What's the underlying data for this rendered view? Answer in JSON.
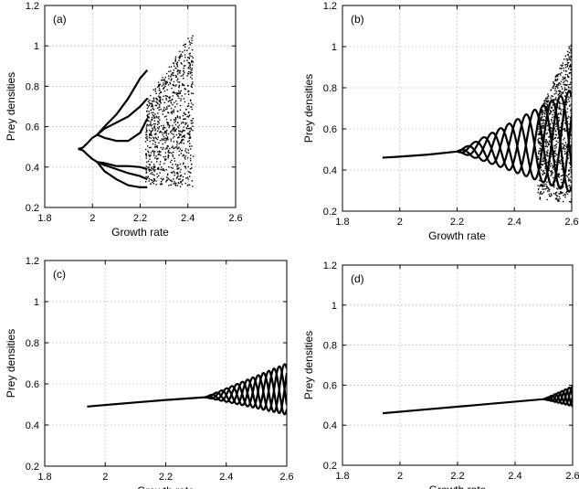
{
  "chart_data": [
    {
      "type": "scatter",
      "panel_label": "(a)",
      "xlabel": "Growth rate",
      "ylabel": "Prey densities",
      "xlim": [
        1.8,
        2.6
      ],
      "ylim": [
        0.2,
        1.2
      ],
      "xticks": [
        "1.8",
        "2",
        "2.2",
        "2.4",
        "2.6"
      ],
      "yticks": [
        "0.2",
        "0.4",
        "0.6",
        "0.8",
        "1",
        "1.2"
      ],
      "grid": true,
      "curves": [
        [
          [
            1.94,
            0.49
          ],
          [
            1.96,
            0.497
          ],
          [
            1.98,
            0.52
          ],
          [
            2.0,
            0.545
          ],
          [
            2.02,
            0.56
          ],
          [
            2.05,
            0.59
          ],
          [
            2.1,
            0.62
          ],
          [
            2.15,
            0.65
          ],
          [
            2.2,
            0.7
          ],
          [
            2.23,
            0.74
          ]
        ],
        [
          [
            1.94,
            0.49
          ],
          [
            1.96,
            0.483
          ],
          [
            1.98,
            0.46
          ],
          [
            2.0,
            0.44
          ],
          [
            2.02,
            0.425
          ],
          [
            2.05,
            0.41
          ],
          [
            2.1,
            0.39
          ],
          [
            2.15,
            0.37
          ],
          [
            2.2,
            0.355
          ],
          [
            2.23,
            0.34
          ]
        ],
        [
          [
            2.02,
            0.56
          ],
          [
            2.05,
            0.6
          ],
          [
            2.1,
            0.66
          ],
          [
            2.15,
            0.74
          ],
          [
            2.2,
            0.84
          ],
          [
            2.23,
            0.88
          ]
        ],
        [
          [
            2.02,
            0.56
          ],
          [
            2.05,
            0.545
          ],
          [
            2.1,
            0.53
          ],
          [
            2.15,
            0.53
          ],
          [
            2.2,
            0.57
          ],
          [
            2.23,
            0.64
          ]
        ],
        [
          [
            2.02,
            0.425
          ],
          [
            2.05,
            0.42
          ],
          [
            2.1,
            0.405
          ],
          [
            2.15,
            0.405
          ],
          [
            2.2,
            0.4
          ],
          [
            2.23,
            0.39
          ]
        ],
        [
          [
            2.02,
            0.425
          ],
          [
            2.05,
            0.38
          ],
          [
            2.1,
            0.34
          ],
          [
            2.15,
            0.31
          ],
          [
            2.2,
            0.3
          ],
          [
            2.23,
            0.3
          ]
        ]
      ],
      "scatter_regions": [
        {
          "x": [
            2.22,
            2.42
          ],
          "y": [
            0.3,
            1.08
          ]
        }
      ]
    },
    {
      "type": "scatter",
      "panel_label": "(b)",
      "xlabel": "Growth rate",
      "ylabel": "Prey densities",
      "xlim": [
        1.8,
        2.6
      ],
      "ylim": [
        0.2,
        1.2
      ],
      "xticks": [
        "1.8",
        "2",
        "2.2",
        "2.4",
        "2.6"
      ],
      "yticks": [
        "0.2",
        "0.4",
        "0.6",
        "0.8",
        "1",
        "1.2"
      ],
      "grid": true,
      "curves": [
        [
          [
            1.94,
            0.46
          ],
          [
            2.0,
            0.465
          ],
          [
            2.1,
            0.475
          ],
          [
            2.2,
            0.49
          ]
        ]
      ],
      "oscillation": {
        "x_start": 2.2,
        "x_end": 2.6,
        "center": [
          0.49,
          0.54
        ],
        "amplitude": [
          0.0,
          0.25
        ],
        "period": 0.06
      },
      "scatter_regions": [
        {
          "x": [
            2.48,
            2.6
          ],
          "y": [
            0.24,
            1.03
          ]
        }
      ]
    },
    {
      "type": "line",
      "panel_label": "(c)",
      "xlabel": "Growth rate",
      "ylabel": "Prey densities",
      "xlim": [
        1.8,
        2.6
      ],
      "ylim": [
        0.2,
        1.2
      ],
      "xticks": [
        "1.8",
        "2",
        "2.2",
        "2.4",
        "2.6"
      ],
      "yticks": [
        "0.2",
        "0.4",
        "0.6",
        "0.8",
        "1",
        "1.2"
      ],
      "grid": true,
      "curves": [
        [
          [
            1.94,
            0.49
          ],
          [
            2.1,
            0.51
          ],
          [
            2.2,
            0.522
          ],
          [
            2.33,
            0.535
          ]
        ]
      ],
      "oscillation": {
        "x_start": 2.33,
        "x_end": 2.6,
        "center": [
          0.535,
          0.575
        ],
        "amplitude": [
          0.0,
          0.125
        ],
        "period": 0.035
      },
      "scatter_regions": []
    },
    {
      "type": "line",
      "panel_label": "(d)",
      "xlabel": "Growth rate",
      "ylabel": "Prey densities",
      "xlim": [
        1.8,
        2.6
      ],
      "ylim": [
        0.2,
        1.2
      ],
      "xticks": [
        "1.8",
        "2",
        "2.2",
        "2.4",
        "2.6"
      ],
      "yticks": [
        "0.2",
        "0.4",
        "0.6",
        "0.8",
        "1",
        "1.2"
      ],
      "grid": true,
      "curves": [
        [
          [
            1.94,
            0.46
          ],
          [
            2.1,
            0.48
          ],
          [
            2.3,
            0.505
          ],
          [
            2.5,
            0.53
          ]
        ]
      ],
      "oscillation": {
        "x_start": 2.5,
        "x_end": 2.6,
        "center": [
          0.53,
          0.545
        ],
        "amplitude": [
          0.0,
          0.05
        ],
        "period": 0.025
      },
      "scatter_regions": []
    }
  ]
}
